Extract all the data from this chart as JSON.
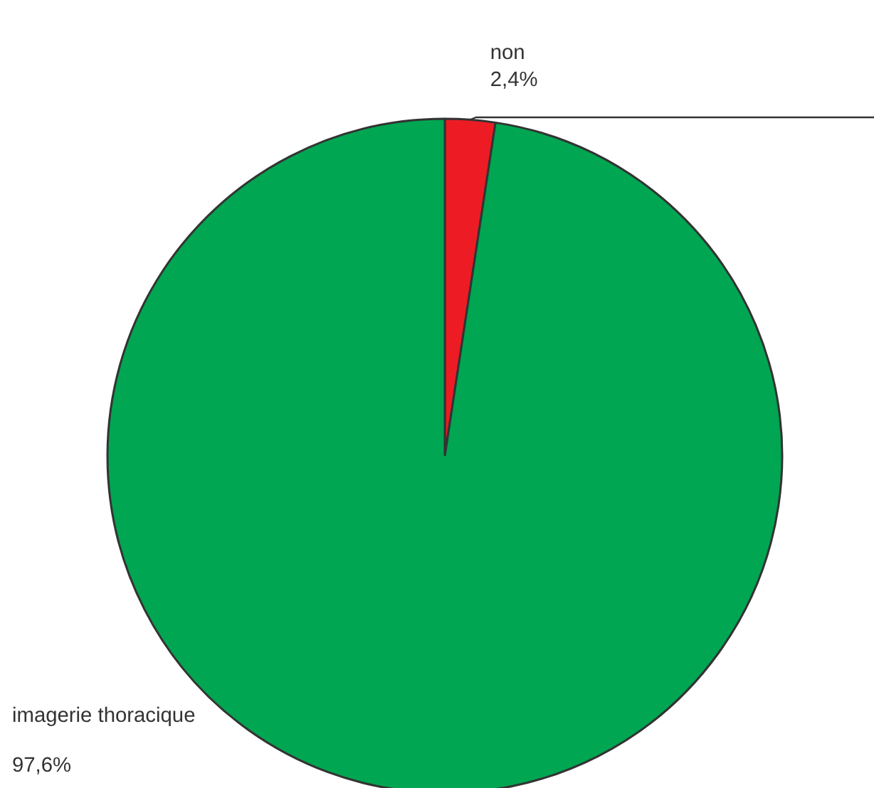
{
  "chart_data": {
    "type": "pie",
    "categories": [
      "non",
      "imagerie thoracique"
    ],
    "values": [
      2.4,
      97.6
    ],
    "colors": [
      "#ed1c24",
      "#00a651"
    ],
    "value_labels": [
      "2,4%",
      "97,6%"
    ]
  }
}
